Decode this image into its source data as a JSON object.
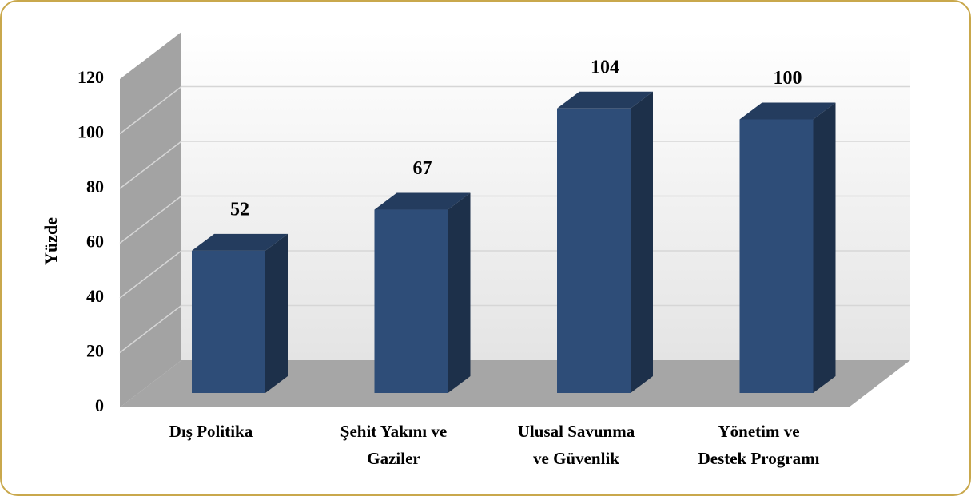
{
  "chart_data": {
    "type": "bar3d",
    "y_label": "Yüzde",
    "categories": [
      "Dış Politika",
      "Şehit Yakını ve\nGaziler",
      "Ulusal Savunma\nve Güvenlik",
      "Yönetim ve\nDestek Programı"
    ],
    "values": [
      52,
      67,
      104,
      100
    ],
    "color": "#2e4d78",
    "ylim": [
      0,
      120
    ],
    "yticks": [
      0,
      20,
      40,
      60,
      80,
      100,
      120
    ],
    "grid": true
  }
}
